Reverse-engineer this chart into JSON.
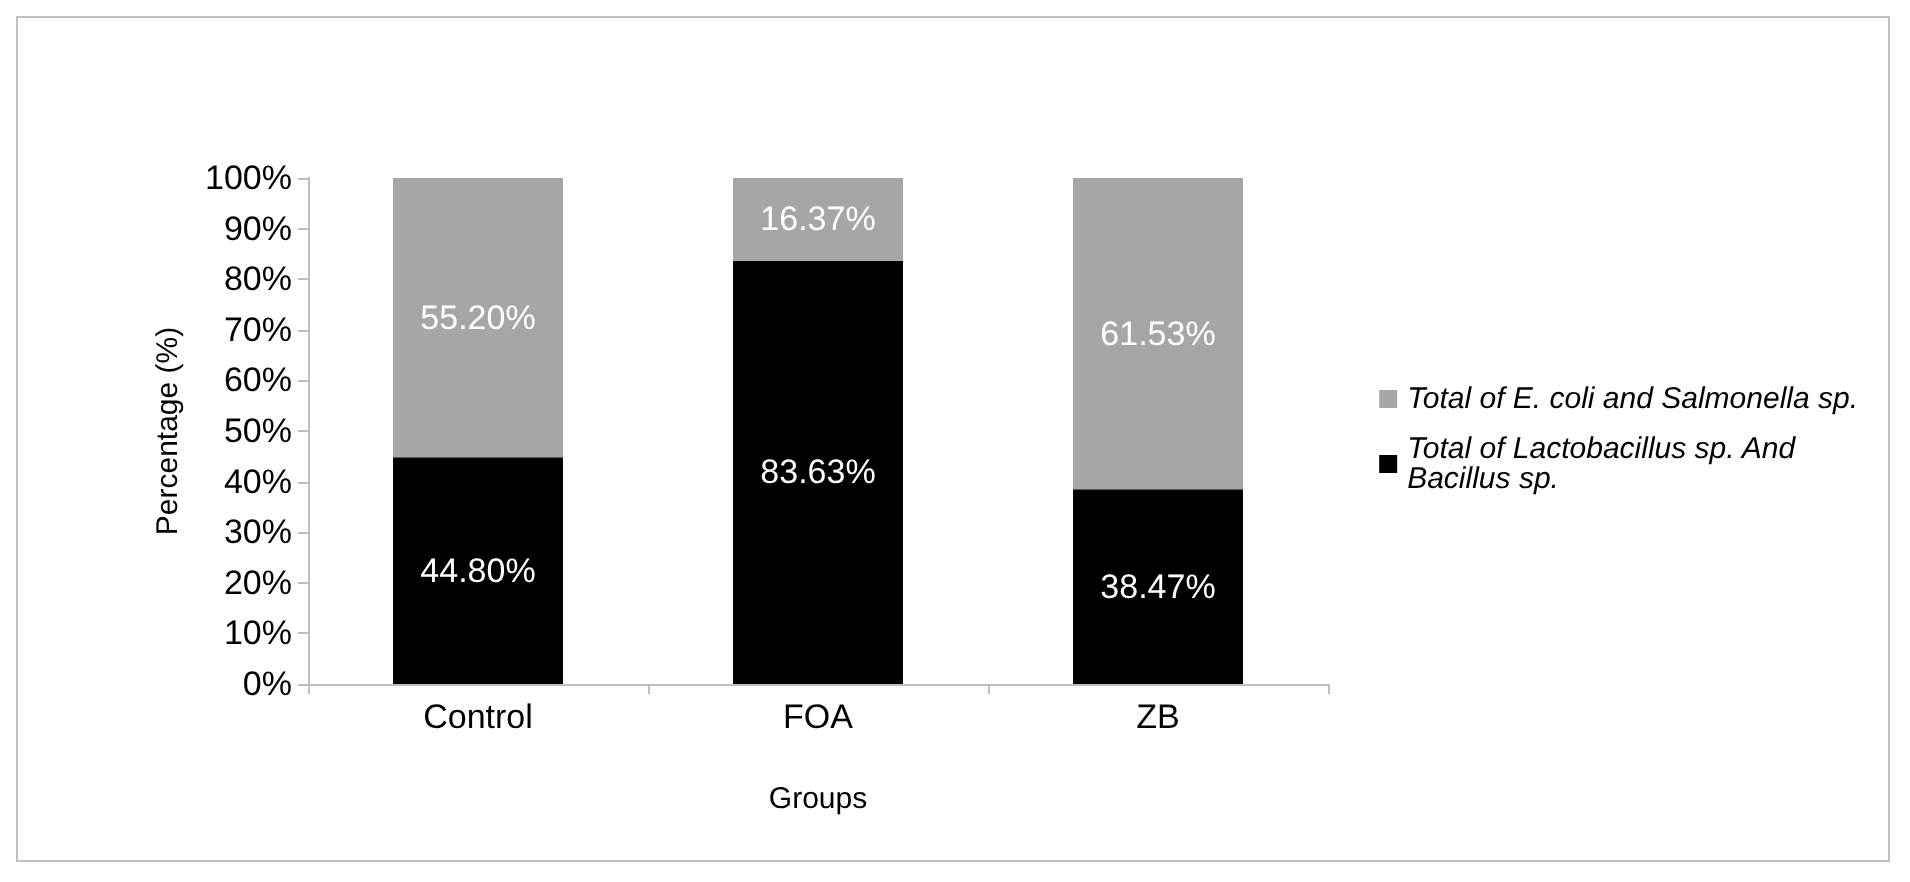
{
  "chart_data": {
    "type": "bar",
    "stacked": true,
    "xlabel": "Groups",
    "ylabel": "Percentage (%)",
    "categories": [
      "Control",
      "FOA",
      "ZB"
    ],
    "series": [
      {
        "name": "Total of Lactobacillus sp. And Bacillus sp.",
        "color": "#000000",
        "values": [
          44.8,
          83.63,
          38.47
        ],
        "value_labels": [
          "44.80%",
          "83.63%",
          "38.47%"
        ]
      },
      {
        "name": "Total of E. coli and Salmonella sp.",
        "color": "#a6a6a6",
        "values": [
          55.2,
          16.37,
          61.53
        ],
        "value_labels": [
          "55.20%",
          "16.37%",
          "61.53%"
        ]
      }
    ],
    "ylim": [
      0,
      100
    ],
    "yticks": [
      {
        "value": 0,
        "label": "0%"
      },
      {
        "value": 10,
        "label": "10%"
      },
      {
        "value": 20,
        "label": "20%"
      },
      {
        "value": 30,
        "label": "30%"
      },
      {
        "value": 40,
        "label": "40%"
      },
      {
        "value": 50,
        "label": "50%"
      },
      {
        "value": 60,
        "label": "60%"
      },
      {
        "value": 70,
        "label": "70%"
      },
      {
        "value": 80,
        "label": "80%"
      },
      {
        "value": 90,
        "label": "90%"
      },
      {
        "value": 100,
        "label": "100%"
      }
    ],
    "grid": false,
    "legend": "right"
  }
}
